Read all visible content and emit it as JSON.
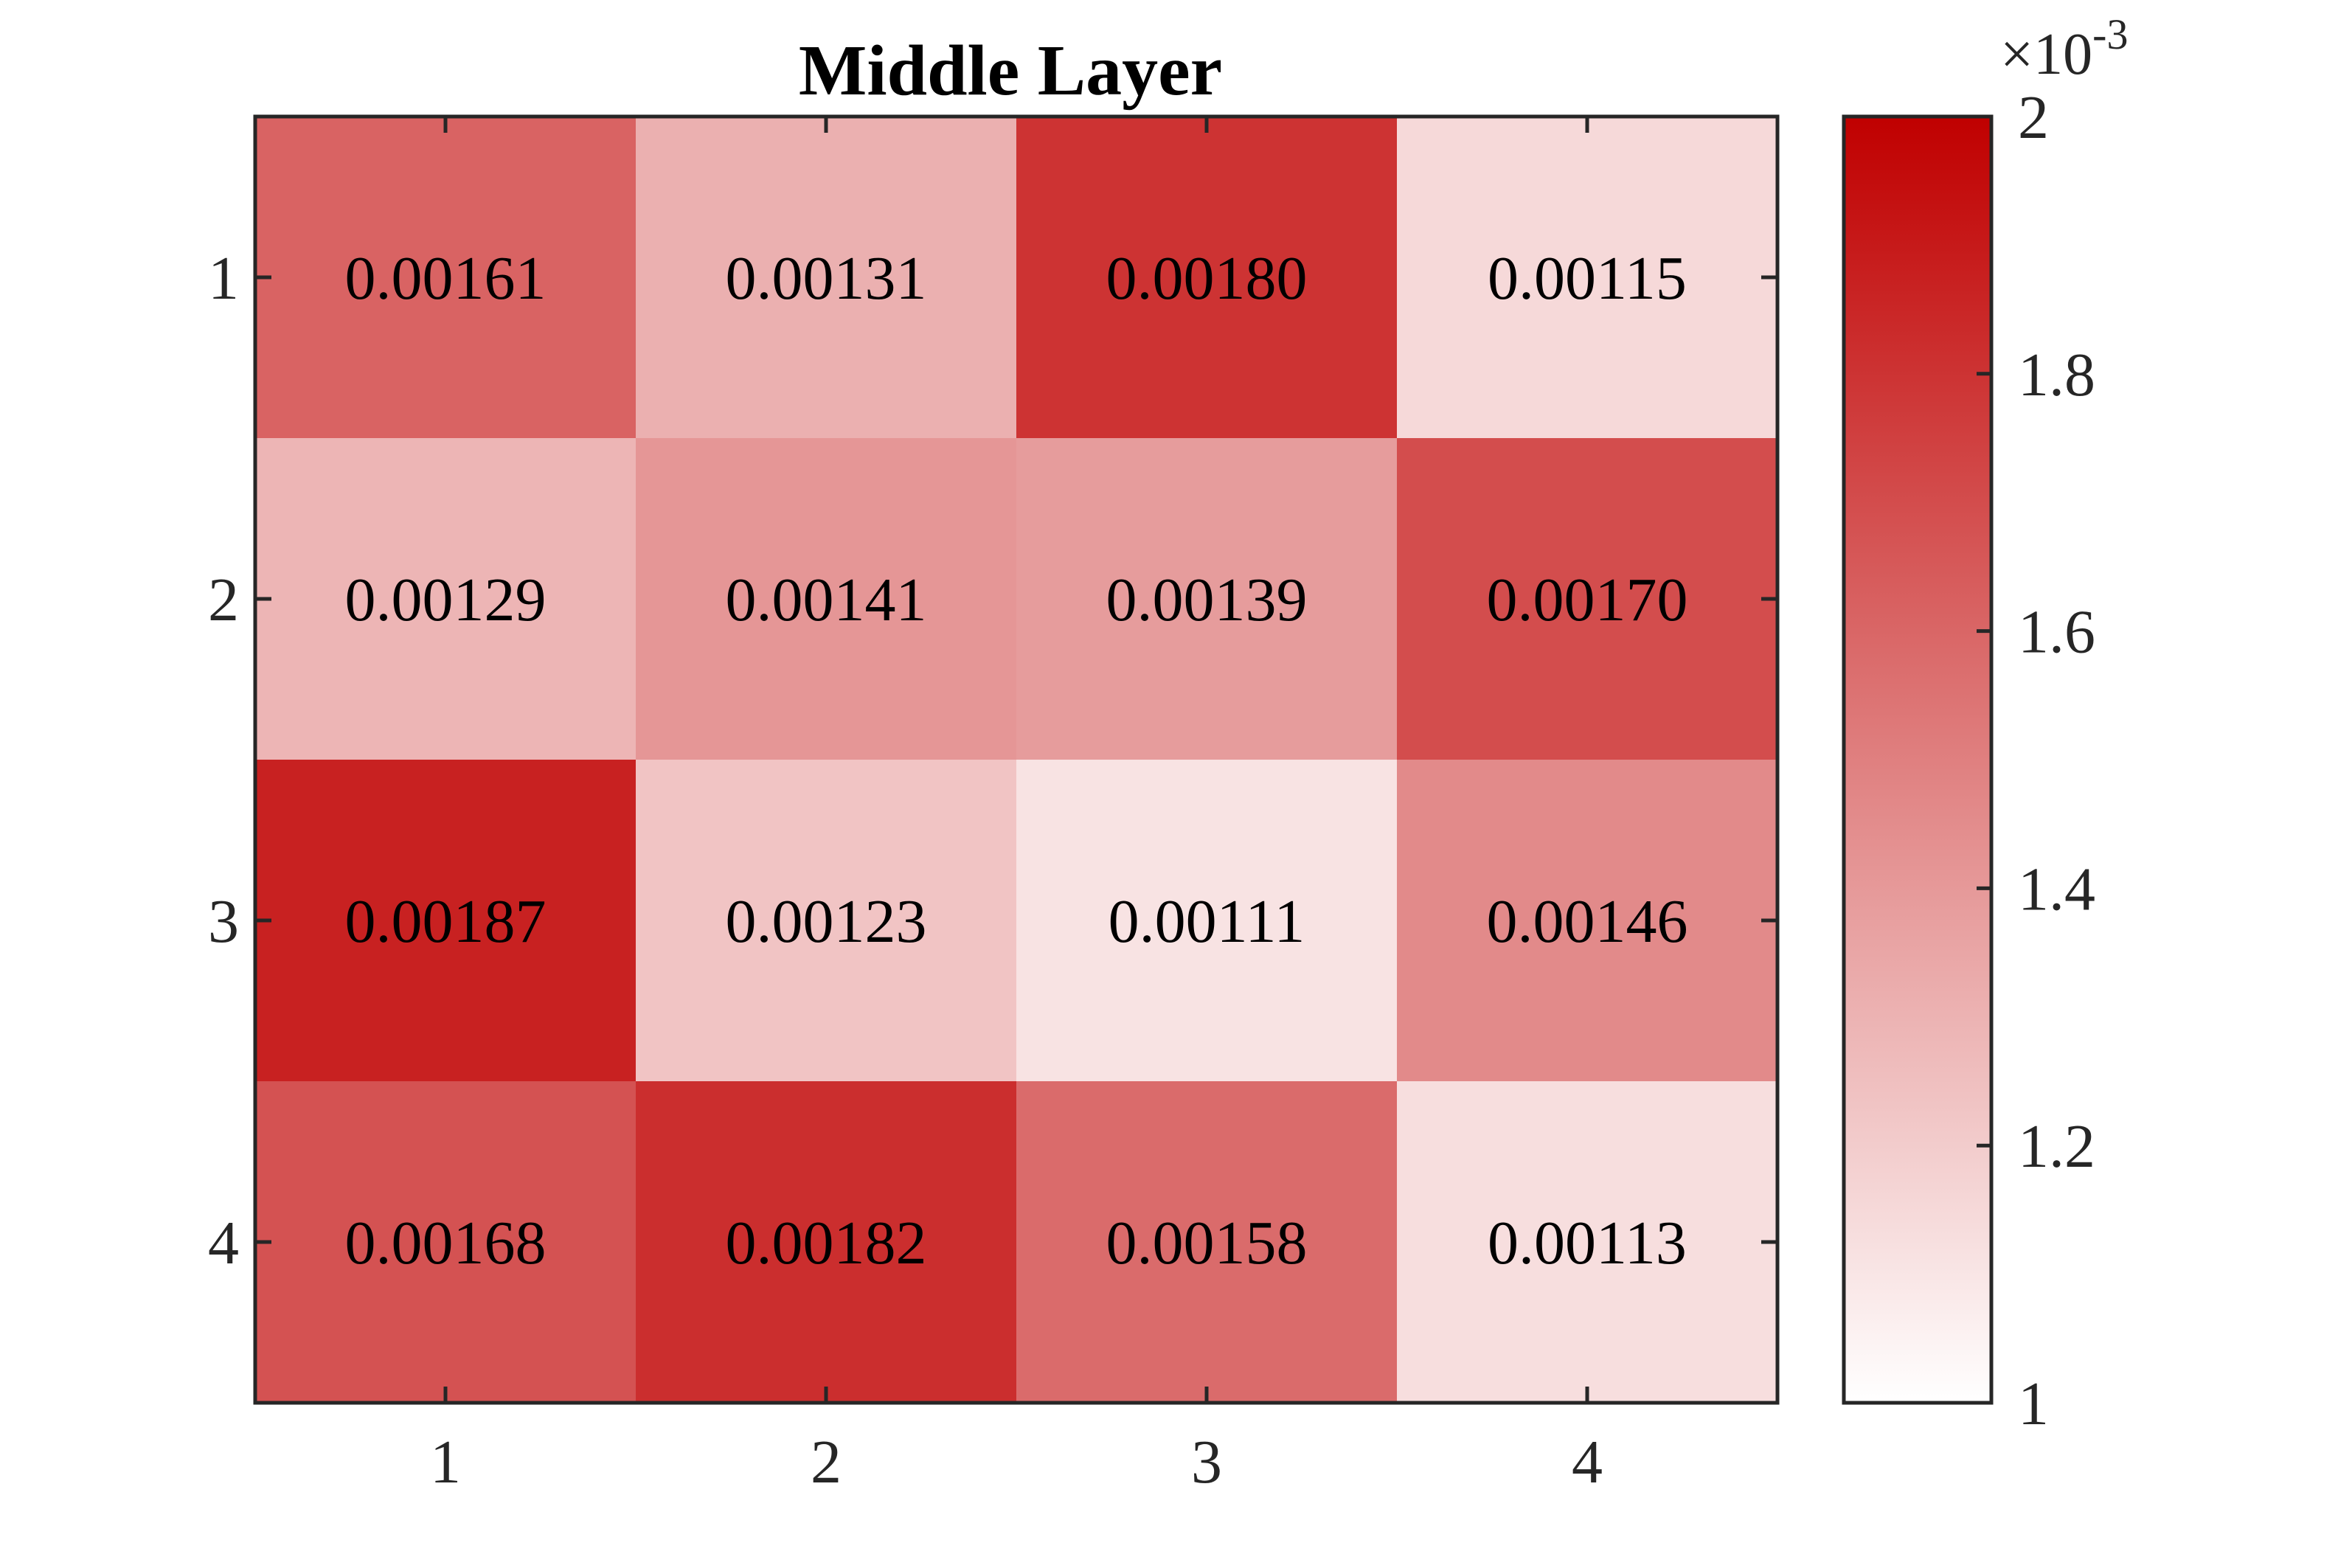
{
  "chart_data": {
    "type": "heatmap",
    "title": "Middle Layer",
    "x_categories": [
      "1",
      "2",
      "3",
      "4"
    ],
    "y_categories": [
      "1",
      "2",
      "3",
      "4"
    ],
    "values": [
      [
        0.00161,
        0.00131,
        0.0018,
        0.00115
      ],
      [
        0.00129,
        0.00141,
        0.00139,
        0.0017
      ],
      [
        0.00187,
        0.00123,
        0.00111,
        0.00146
      ],
      [
        0.00168,
        0.00182,
        0.00158,
        0.00113
      ]
    ],
    "cell_labels": [
      [
        "0.00161",
        "0.00131",
        "0.00180",
        "0.00115"
      ],
      [
        "0.00129",
        "0.00141",
        "0.00139",
        "0.00170"
      ],
      [
        "0.00187",
        "0.00123",
        "0.00111",
        "0.00146"
      ],
      [
        "0.00168",
        "0.00182",
        "0.00158",
        "0.00113"
      ]
    ],
    "colorbar": {
      "range": [
        0.001,
        0.002
      ],
      "ticks": [
        "1",
        "1.2",
        "1.4",
        "1.6",
        "1.8",
        "2"
      ],
      "tick_values": [
        1.0,
        1.2,
        1.4,
        1.6,
        1.8,
        2.0
      ],
      "multiplier_base": "×10",
      "multiplier_exponent": "-3",
      "color_low": "#ffffff",
      "color_high": "#c00000"
    }
  }
}
